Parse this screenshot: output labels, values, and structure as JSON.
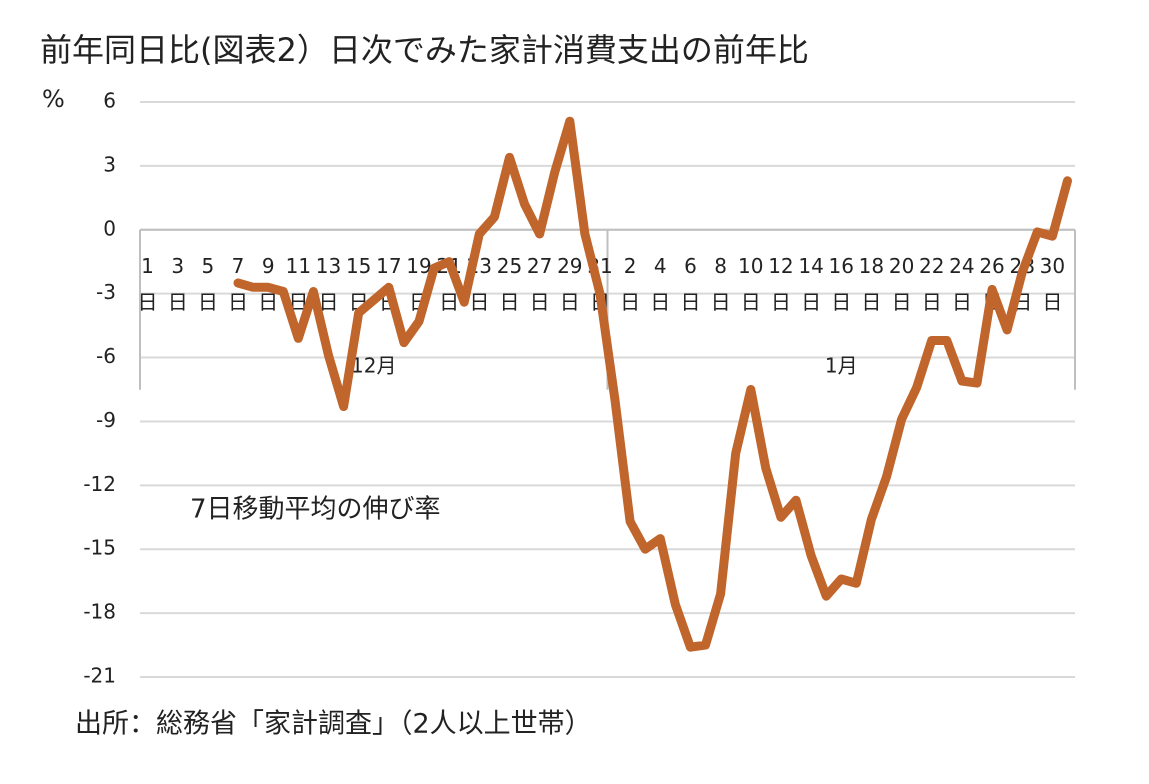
{
  "chart_data": {
    "type": "line",
    "title": "(図表2）日次でみた家計消費支出の前年比",
    "y_label": "前年同日比",
    "y_unit": "%",
    "annotation": "7日移動平均の伸び率",
    "source": "出所：総務省「家計調査」（2人以上世帯）",
    "categories": [
      "1日",
      null,
      "3日",
      null,
      "5日",
      null,
      "7日",
      null,
      "9日",
      null,
      "11日",
      null,
      "13日",
      null,
      "15日",
      null,
      "17日",
      null,
      "19日",
      null,
      "21日",
      null,
      "23日",
      null,
      "25日",
      null,
      "27日",
      null,
      "29日",
      null,
      "31日",
      null,
      "2日",
      null,
      "4日",
      null,
      "6日",
      null,
      "8日",
      null,
      "10日",
      null,
      "12日",
      null,
      "14日",
      null,
      "16日",
      null,
      "18日",
      null,
      "20日",
      null,
      "22日",
      null,
      "24日",
      null,
      "26日",
      null,
      "28日",
      null,
      "30日",
      null
    ],
    "months": [
      "12月",
      "1月"
    ],
    "series": [
      {
        "name": "7日移動平均の伸び率",
        "color": "#c0652b",
        "values": [
          null,
          null,
          null,
          null,
          null,
          null,
          -2.5,
          -2.7,
          -2.7,
          -2.9,
          -5.1,
          -2.9,
          -5.9,
          -8.3,
          -3.9,
          -3.3,
          -2.7,
          -5.3,
          -4.3,
          -1.8,
          -1.5,
          -3.4,
          -0.2,
          0.6,
          3.4,
          1.2,
          -0.2,
          2.7,
          5.1,
          -0.2,
          -3.0,
          -8.0,
          -13.7,
          -15.0,
          -14.5,
          -17.6,
          -19.6,
          -19.5,
          -17.1,
          -10.5,
          -7.5,
          -11.2,
          -13.5,
          -12.7,
          -15.3,
          -17.2,
          -16.4,
          -16.6,
          -13.6,
          -11.6,
          -8.9,
          -7.4,
          -5.2,
          -5.2,
          -7.1,
          -7.2,
          -2.8,
          -4.7,
          -2.0,
          -0.1,
          -0.3,
          2.3
        ]
      }
    ],
    "ylim": [
      -21,
      6
    ],
    "yticks": [
      6,
      3,
      0,
      -3,
      -6,
      -9,
      -12,
      -15,
      -18,
      -21
    ],
    "grid": true
  }
}
